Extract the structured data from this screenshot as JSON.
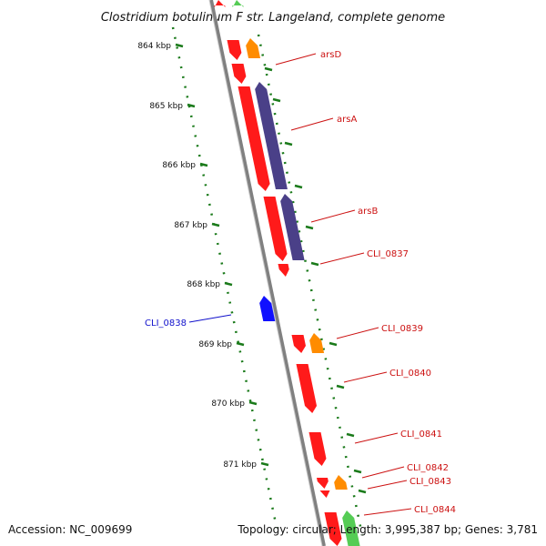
{
  "title": "Clostridium botulinum F str. Langeland, complete genome",
  "footer": {
    "accession": "Accession: NC_009699",
    "topology": "Topology: circular; Length: 3,995,387 bp; Genes: 3,781"
  },
  "colors": {
    "backbone": "#808080",
    "tick": "#1a7a1a",
    "forward_cds": "#ff1a1a",
    "reverse_cds": "#1010ff",
    "rna": "#ff8c00",
    "misc": "#4a4088",
    "rrna": "#55cc55",
    "label_forward": "#cc1111",
    "label_reverse": "#1111cc"
  },
  "scale_ticks": [
    "864 kbp",
    "865 kbp",
    "866 kbp",
    "867 kbp",
    "868 kbp",
    "869 kbp",
    "870 kbp",
    "871 kbp"
  ],
  "gene_labels": [
    {
      "label": "arsD",
      "strand": "forward"
    },
    {
      "label": "arsA",
      "strand": "forward"
    },
    {
      "label": "arsB",
      "strand": "forward"
    },
    {
      "label": "CLI_0837",
      "strand": "forward"
    },
    {
      "label": "CLI_0838",
      "strand": "reverse"
    },
    {
      "label": "CLI_0839",
      "strand": "forward"
    },
    {
      "label": "CLI_0840",
      "strand": "forward"
    },
    {
      "label": "CLI_0841",
      "strand": "forward"
    },
    {
      "label": "CLI_0842",
      "strand": "forward"
    },
    {
      "label": "CLI_0843",
      "strand": "forward"
    },
    {
      "label": "CLI_0844",
      "strand": "forward"
    }
  ]
}
